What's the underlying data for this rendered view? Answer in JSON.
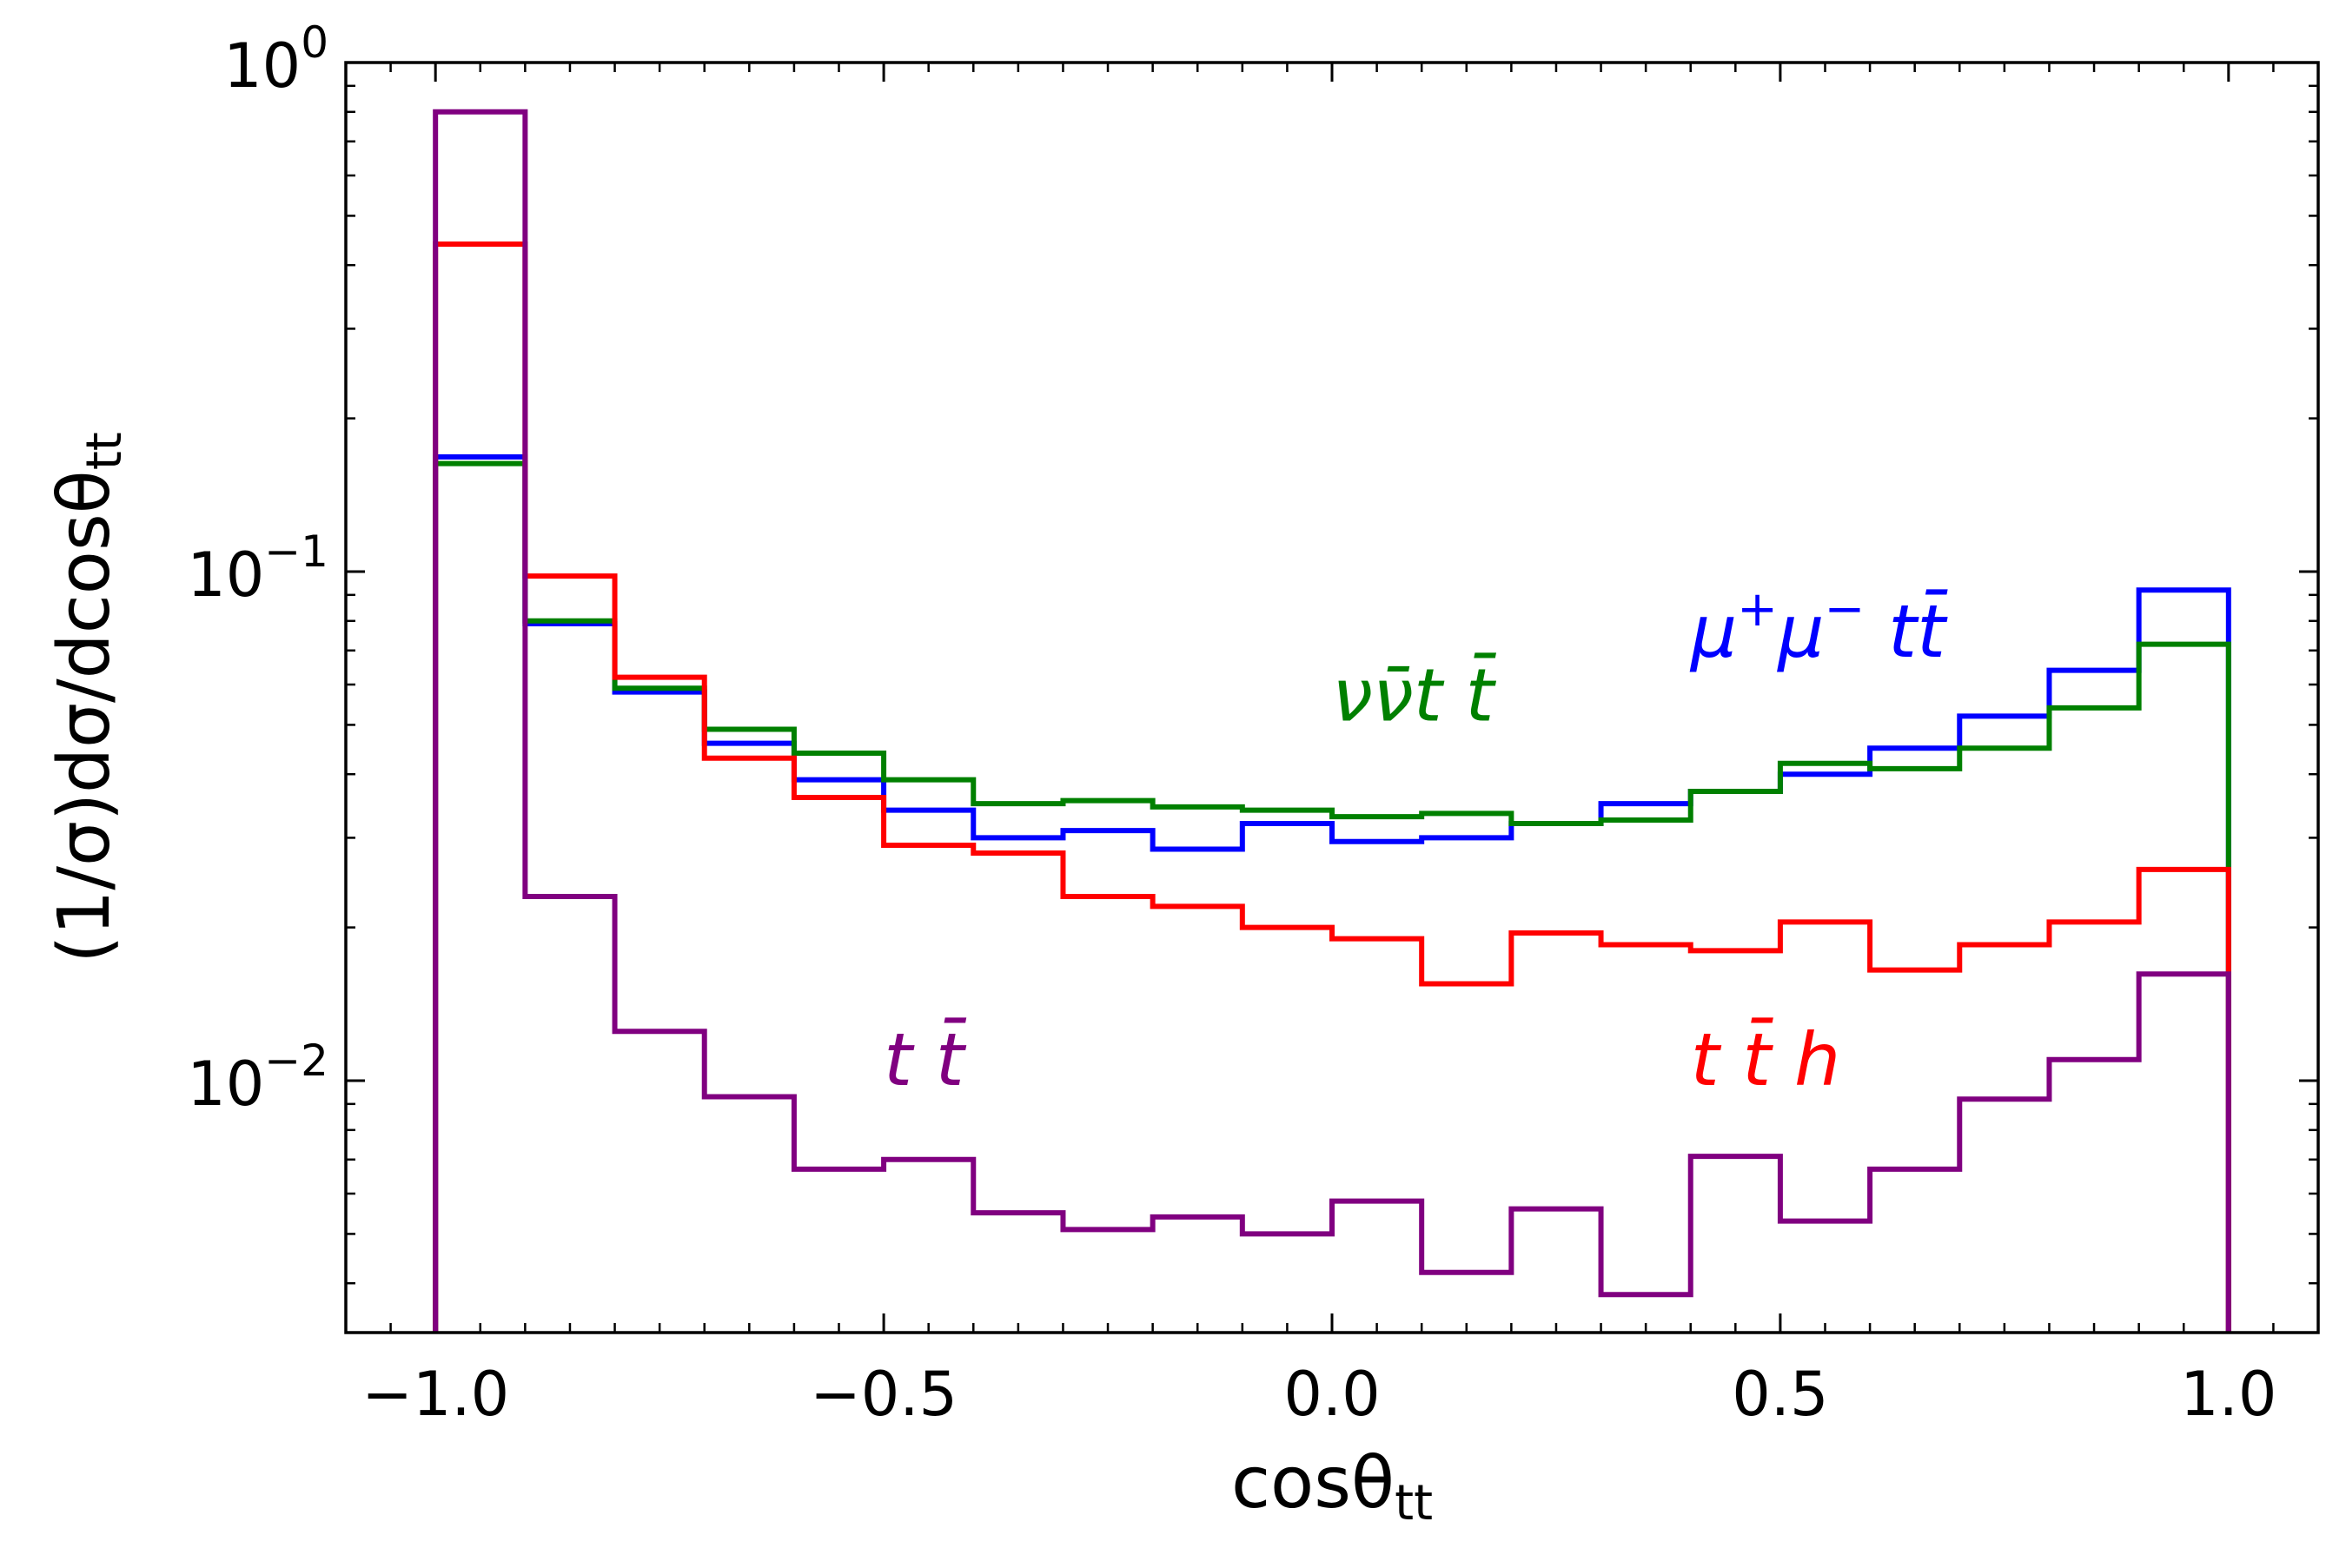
{
  "chart_data": {
    "type": "step-histogram",
    "title": "",
    "xlabel": "cosθ",
    "xlabel_sub": "tt",
    "ylabel": "(1/σ)dσ/dcosθ",
    "ylabel_sub": "tt",
    "xscale": "linear",
    "yscale": "log",
    "xlim": [
      -1.1,
      1.1
    ],
    "ylim": [
      0.0032,
      1.0
    ],
    "xticks": [
      -1.0,
      -0.5,
      0.0,
      0.5,
      1.0
    ],
    "xtick_labels": [
      "−1.0",
      "−0.5",
      "0.0",
      "0.5",
      "1.0"
    ],
    "yticks": [
      {
        "value": 1.0,
        "base": "10",
        "exp": "0"
      },
      {
        "value": 0.1,
        "base": "10",
        "exp": "−1"
      },
      {
        "value": 0.01,
        "base": "10",
        "exp": "−2"
      }
    ],
    "bin_edges": [
      -1.0,
      -0.9,
      -0.8,
      -0.7,
      -0.6,
      -0.5,
      -0.4,
      -0.3,
      -0.2,
      -0.1,
      0.0,
      0.1,
      0.2,
      0.3,
      0.4,
      0.5,
      0.6,
      0.7,
      0.8,
      0.9,
      1.0
    ],
    "series": [
      {
        "name": "mumu_tt",
        "label": "μ⁺μ⁻ t t̄",
        "color": "#0000ff",
        "values": [
          0.168,
          0.079,
          0.058,
          0.046,
          0.039,
          0.034,
          0.03,
          0.031,
          0.0285,
          0.032,
          0.0295,
          0.03,
          0.032,
          0.035,
          0.037,
          0.04,
          0.045,
          0.052,
          0.064,
          0.092
        ]
      },
      {
        "name": "nunu_tt",
        "label": "νν̄t t̄",
        "color": "#008000",
        "values": [
          0.163,
          0.08,
          0.059,
          0.049,
          0.044,
          0.039,
          0.035,
          0.0355,
          0.0345,
          0.034,
          0.033,
          0.0335,
          0.032,
          0.0325,
          0.037,
          0.042,
          0.041,
          0.045,
          0.054,
          0.072
        ]
      },
      {
        "name": "tth",
        "label": "t t̄ h",
        "color": "#ff0000",
        "values": [
          0.44,
          0.098,
          0.062,
          0.043,
          0.036,
          0.029,
          0.028,
          0.023,
          0.022,
          0.02,
          0.019,
          0.0155,
          0.0195,
          0.0185,
          0.018,
          0.0205,
          0.0165,
          0.0185,
          0.0205,
          0.026
        ]
      },
      {
        "name": "tt",
        "label": "t t̄",
        "color": "#800080",
        "values": [
          0.8,
          0.023,
          0.0125,
          0.0093,
          0.0067,
          0.007,
          0.0055,
          0.0051,
          0.0054,
          0.005,
          0.0058,
          0.0042,
          0.0056,
          0.0038,
          0.0071,
          0.0053,
          0.0067,
          0.0092,
          0.011,
          0.0162
        ]
      }
    ],
    "annotations": [
      {
        "series": "mumu_tt",
        "text_parts": [
          "μ",
          "+",
          "μ",
          "−",
          "t",
          "t̄"
        ],
        "color": "#0000ff",
        "x": 0.4,
        "y": 0.068
      },
      {
        "series": "nunu_tt",
        "text": "νν̄t t̄",
        "color": "#008000",
        "x": 0.0,
        "y": 0.051
      },
      {
        "series": "tth",
        "text": "t t̄ h",
        "color": "#ff0000",
        "x": 0.4,
        "y": 0.0098
      },
      {
        "series": "tt",
        "text": "t t̄",
        "color": "#800080",
        "x": -0.5,
        "y": 0.0098
      }
    ]
  }
}
